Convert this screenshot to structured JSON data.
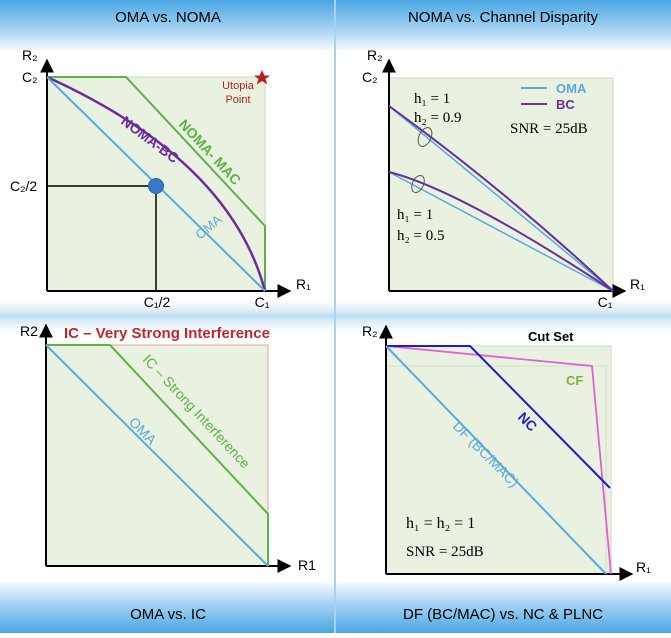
{
  "panels": {
    "top_left": {
      "title": "OMA vs. NOMA",
      "y_axis": "R₂",
      "x_axis": "R₁",
      "y_tick_top": "C₂",
      "y_tick_mid": "C₂/2",
      "x_tick_mid": "C₁/2",
      "x_tick_end": "C₁",
      "curve_noma_bc": "NOMA-BC",
      "curve_noma_mac": "NOMA- MAC",
      "curve_oma": "OMA",
      "utopia_line1": "Utopia",
      "utopia_line2": "Point"
    },
    "top_right": {
      "title": "NOMA vs. Channel Disparity",
      "y_axis": "R₂",
      "x_axis": "R₁",
      "y_tick_top": "C₂",
      "x_tick_end": "C₁",
      "legend_oma": "OMA",
      "legend_bc": "BC",
      "snr": "SNR = 25dB",
      "case1_h1": "h₁ = 1",
      "case1_h2": "h₂ = 0.9",
      "case2_h1": "h₁ = 1",
      "case2_h2": "h₂ = 0.5"
    },
    "bottom_left": {
      "title": "OMA vs. IC",
      "y_axis": "R2",
      "x_axis": "R1",
      "label_very_strong": "IC – Very Strong Interference",
      "label_strong": "IC – Strong Interference",
      "label_oma": "OMA"
    },
    "bottom_right": {
      "title": "DF (BC/MAC) vs. NC & PLNC",
      "y_axis": "R₂",
      "x_axis": "R₁",
      "label_cut_set": "Cut Set",
      "label_cf": "CF",
      "label_nc": "NC",
      "label_df": "DF (BC/MAC)",
      "eq_h": "h₁ = h₂ = 1",
      "snr": "SNR = 25dB"
    }
  },
  "colors": {
    "band": "#4aa3df",
    "fill": "#e9f2e1",
    "oma": "#5aa9dd",
    "noma_bc": "#6a2d9a",
    "noma_mac": "#5fb04a",
    "utopia": "#b22222",
    "marker": "#3a78c9",
    "very_strong": "#c0272d",
    "nc": "#1b1fc9",
    "cf_boundary": "#e35fd8",
    "cf_label": "#7cb342"
  }
}
